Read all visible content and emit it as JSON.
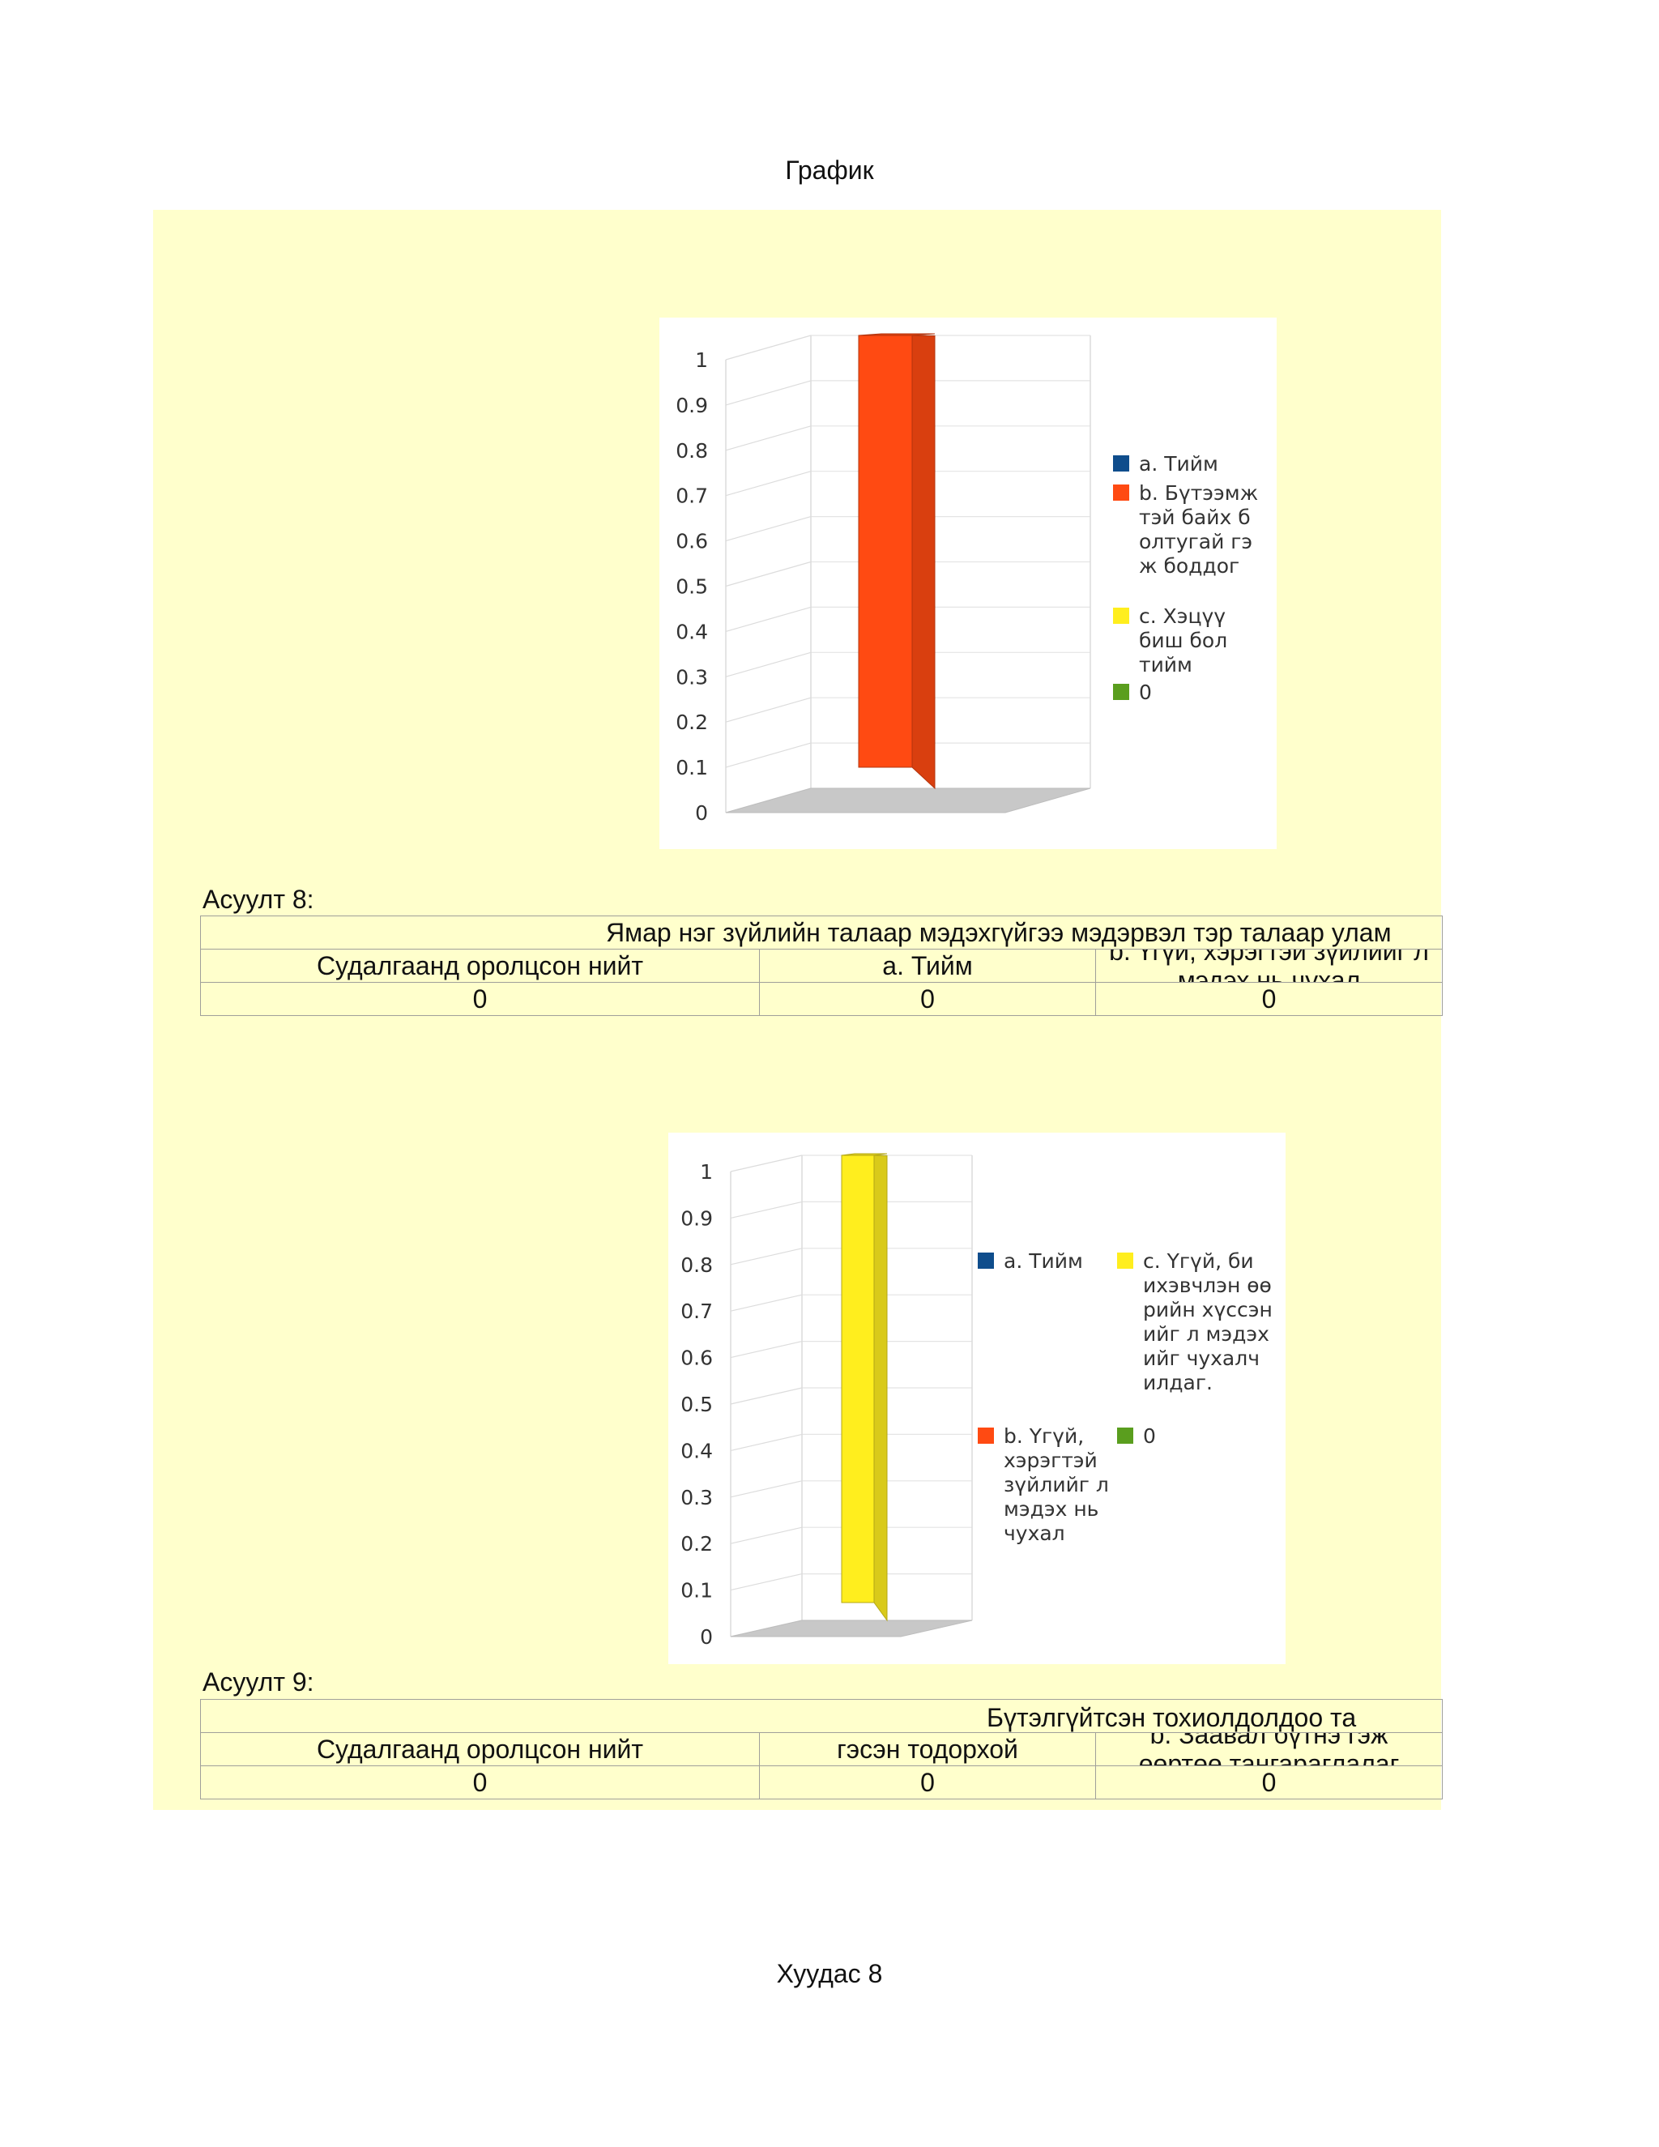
{
  "page": {
    "header_title": "График",
    "footer": "Хуудас 8"
  },
  "colors": {
    "blue": "#0f4d8c",
    "orange": "#ff4a12",
    "yellow": "#ffee1e",
    "green": "#5a9e1e",
    "page_bg": "#ffffcc"
  },
  "chart_data": [
    {
      "type": "bar",
      "categories": [
        ""
      ],
      "series": [
        {
          "name": "a. Тийм",
          "values": [
            0
          ]
        },
        {
          "name": "b. Бүтээмжтэй байх болтугай гэж боддог",
          "values": [
            1
          ]
        },
        {
          "name": "c. Хэцүү биш бол тийм",
          "values": [
            0
          ]
        },
        {
          "name": "0",
          "values": [
            0
          ]
        }
      ],
      "ylim": [
        0,
        1
      ],
      "yticks": [
        "0",
        "0.1",
        "0.2",
        "0.3",
        "0.4",
        "0.5",
        "0.6",
        "0.7",
        "0.8",
        "0.9",
        "1"
      ],
      "legend": "right",
      "grid": true
    },
    {
      "type": "bar",
      "categories": [
        ""
      ],
      "series": [
        {
          "name": "a. Тийм",
          "values": [
            0
          ]
        },
        {
          "name": "b. Үгүй, хэрэгтэй зүйлийг л мэдэх нь чухал",
          "values": [
            0
          ]
        },
        {
          "name": "c. Үгүй, би ихэвчлэн өөрийн хүссэнийг л мэдэхийг чухалчилдаг.",
          "values": [
            1
          ]
        },
        {
          "name": "0",
          "values": [
            0
          ]
        }
      ],
      "ylim": [
        0,
        1
      ],
      "yticks": [
        "0",
        "0.1",
        "0.2",
        "0.3",
        "0.4",
        "0.5",
        "0.6",
        "0.7",
        "0.8",
        "0.9",
        "1"
      ],
      "legend": "right",
      "grid": true
    }
  ],
  "chart1_legend": {
    "a": "а. Тийм",
    "b": "b. Бүтээмжтэй байх болтугай гэж боддог",
    "c": "c. Хэцүү биш бол тийм",
    "d": "0"
  },
  "chart2_legend": {
    "a": "а. Тийм",
    "b": "b. Үгүй, хэрэгтэй зүйлийг л мэдэх нь чухал",
    "c": "c. Үгүй, би ихэвчлэн өөрийн хүссэнийг л мэдэхийг чухалчилдаг.",
    "d": "0"
  },
  "q8": {
    "label": "Асуулт 8:",
    "question": "Ямар нэг зүйлийн талаар мэдэхгүйгээ мэдэрвэл тэр талаар улам",
    "col1": "Судалгаанд оролцсон нийт",
    "col2": "а. Тийм",
    "col3_line1": "b. Үгүй, хэрэгтэй зүйлийг л",
    "col3_line2": "мэдэх нь чухал",
    "v1": "0",
    "v2": "0",
    "v3": "0"
  },
  "q9": {
    "label": "Асуулт 9:",
    "question": "Бүтэлгүйтсэн тохиолдолдоо та",
    "col1": "Судалгаанд оролцсон нийт",
    "col2": "гэсэн тодорхой",
    "col3_line1": "b. Заавал бүтнэ гэж",
    "col3_line2": "өөртөө тангараглалаг",
    "v1": "0",
    "v2": "0",
    "v3": "0"
  }
}
